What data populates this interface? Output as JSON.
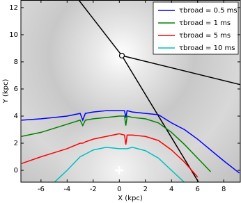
{
  "chart_data": {
    "type": "line",
    "xlabel": "X (kpc)",
    "ylabel": "Y (kpc)",
    "x": [
      -7.5,
      -6,
      -5,
      -4,
      -3,
      -2.8,
      -2.6,
      -2,
      -1,
      0,
      0.4,
      0.5,
      0.6,
      1,
      2,
      3,
      4,
      5,
      6,
      7,
      8,
      9.2
    ],
    "series": [
      {
        "name": "τbroad = 0.5 ms",
        "color": "#0000ff",
        "values": [
          3.7,
          3.8,
          3.9,
          4.0,
          4.2,
          3.7,
          4.2,
          4.3,
          4.4,
          4.4,
          4.4,
          3.9,
          4.4,
          4.3,
          4.2,
          4.1,
          3.5,
          3.0,
          2.3,
          1.5,
          0.7,
          -0.2
        ]
      },
      {
        "name": "τbroad = 1 ms",
        "color": "#008000",
        "values": [
          2.5,
          2.8,
          3.1,
          3.4,
          3.7,
          3.3,
          3.7,
          3.8,
          3.9,
          4.0,
          4.0,
          3.3,
          4.0,
          3.9,
          3.8,
          3.5,
          2.8,
          1.9,
          0.9,
          -0.1,
          null,
          null
        ]
      },
      {
        "name": "τbroad = 5 ms",
        "color": "#ff0000",
        "values": [
          0.5,
          1.0,
          1.3,
          1.6,
          2.0,
          2.0,
          2.1,
          2.3,
          2.5,
          2.7,
          2.6,
          1.9,
          2.6,
          2.6,
          2.5,
          2.2,
          1.5,
          0.6,
          -0.5,
          null,
          null,
          null
        ]
      },
      {
        "name": "τbroad = 10 ms",
        "color": "#00bfbf",
        "values": [
          null,
          null,
          -0.9,
          0.0,
          1.0,
          1.1,
          1.2,
          1.5,
          1.7,
          1.6,
          1.6,
          1.6,
          1.6,
          1.7,
          1.45,
          0.9,
          0.0,
          -0.9,
          null,
          null,
          null,
          null
        ]
      }
    ],
    "xlim": [
      -7.54,
      9.27
    ],
    "ylim": [
      -0.87,
      12.56
    ],
    "xticks": [
      -6,
      -4,
      -2,
      0,
      2,
      4,
      6,
      8
    ],
    "yticks": [
      0,
      2,
      4,
      6,
      8,
      10,
      12
    ],
    "legend": "upper-right"
  }
}
